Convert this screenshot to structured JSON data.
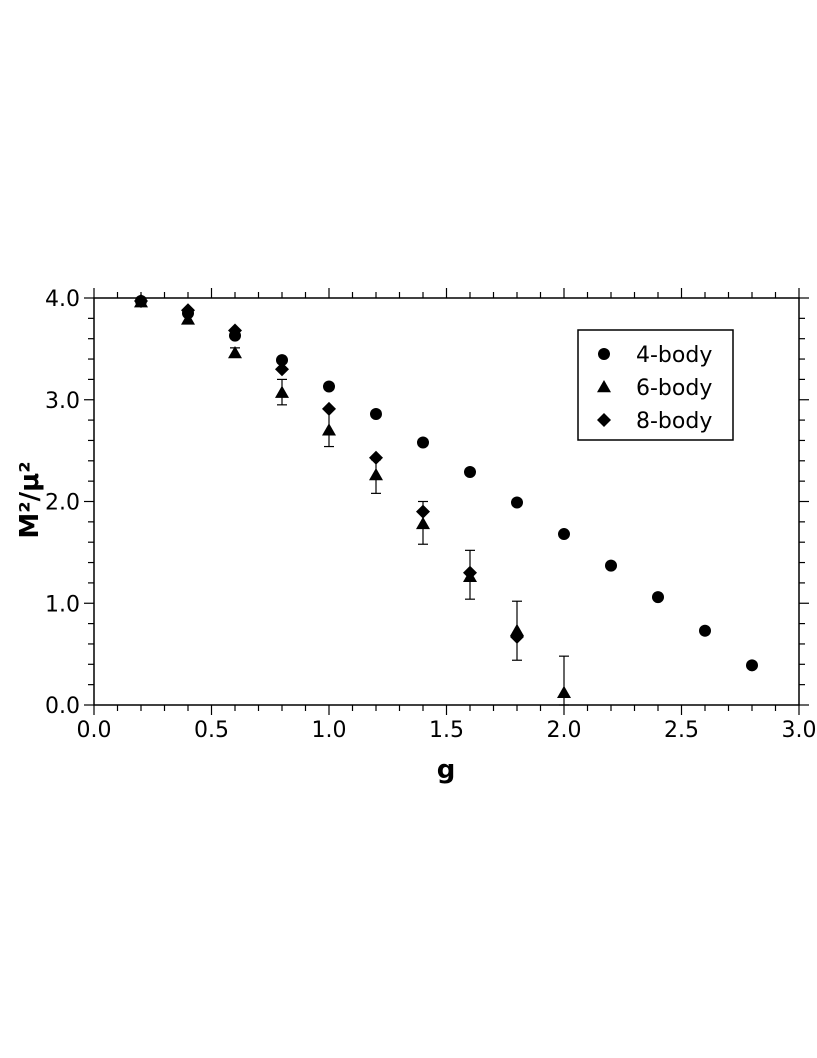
{
  "chart_data": {
    "type": "scatter",
    "title": "",
    "xlabel": "g",
    "ylabel": "M²/μ²",
    "xlim": [
      0.0,
      3.0
    ],
    "ylim": [
      0.0,
      4.0
    ],
    "x_ticks": [
      0.0,
      0.5,
      1.0,
      1.5,
      2.0,
      2.5,
      3.0
    ],
    "x_tick_labels": [
      "0.0",
      "0.5",
      "1.0",
      "1.5",
      "2.0",
      "2.5",
      "3.0"
    ],
    "y_ticks": [
      0.0,
      1.0,
      2.0,
      3.0,
      4.0
    ],
    "y_tick_labels": [
      "0.0",
      "1.0",
      "2.0",
      "3.0",
      "4.0"
    ],
    "grid": false,
    "legend_position": "top-right",
    "series": [
      {
        "name": "4-body",
        "marker": "circle",
        "points": [
          {
            "x": 0.2,
            "y": 3.97
          },
          {
            "x": 0.4,
            "y": 3.85
          },
          {
            "x": 0.6,
            "y": 3.63
          },
          {
            "x": 0.8,
            "y": 3.39
          },
          {
            "x": 1.0,
            "y": 3.13
          },
          {
            "x": 1.2,
            "y": 2.86
          },
          {
            "x": 1.4,
            "y": 2.58
          },
          {
            "x": 1.6,
            "y": 2.29
          },
          {
            "x": 1.8,
            "y": 1.99
          },
          {
            "x": 2.0,
            "y": 1.68
          },
          {
            "x": 2.2,
            "y": 1.37
          },
          {
            "x": 2.4,
            "y": 1.06
          },
          {
            "x": 2.6,
            "y": 0.73
          },
          {
            "x": 2.8,
            "y": 0.39
          }
        ]
      },
      {
        "name": "6-body",
        "marker": "triangle",
        "points": [
          {
            "x": 0.2,
            "y": 3.96
          },
          {
            "x": 0.4,
            "y": 3.79
          },
          {
            "x": 0.6,
            "y": 3.46,
            "err_low": 3.43,
            "err_high": 3.51
          },
          {
            "x": 0.8,
            "y": 3.07,
            "err_low": 2.95,
            "err_high": 3.2
          },
          {
            "x": 1.0,
            "y": 2.7,
            "err_low": 2.54,
            "err_high": 2.9
          },
          {
            "x": 1.2,
            "y": 2.26,
            "err_low": 2.08,
            "err_high": 2.41
          },
          {
            "x": 1.4,
            "y": 1.78,
            "err_low": 1.58,
            "err_high": 2.0
          },
          {
            "x": 1.6,
            "y": 1.26,
            "err_low": 1.04,
            "err_high": 1.52
          },
          {
            "x": 1.8,
            "y": 0.73,
            "err_low": 0.44,
            "err_high": 1.02
          },
          {
            "x": 2.0,
            "y": 0.12,
            "err_low": 0.0,
            "err_high": 0.48
          }
        ]
      },
      {
        "name": "8-body",
        "marker": "diamond",
        "points": [
          {
            "x": 0.2,
            "y": 3.97
          },
          {
            "x": 0.4,
            "y": 3.88
          },
          {
            "x": 0.6,
            "y": 3.68
          },
          {
            "x": 0.8,
            "y": 3.3
          },
          {
            "x": 1.0,
            "y": 2.91
          },
          {
            "x": 1.2,
            "y": 2.43
          },
          {
            "x": 1.4,
            "y": 1.9
          },
          {
            "x": 1.6,
            "y": 1.3
          },
          {
            "x": 1.8,
            "y": 0.67
          }
        ]
      }
    ]
  }
}
